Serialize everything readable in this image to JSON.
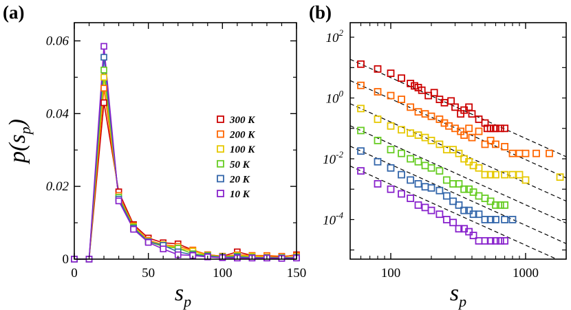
{
  "figure": {
    "panel_a_label": "(a)",
    "panel_b_label": "(b)"
  },
  "chart_data": [
    {
      "type": "line",
      "panel": "(a)",
      "xlabel_main": "s",
      "xlabel_sub": "p",
      "ylabel": "p(s",
      "ylabel_sub": "p",
      "ylabel_close": ")",
      "xlim": [
        0,
        150
      ],
      "ylim": [
        0,
        0.065
      ],
      "x_ticks": [
        0,
        50,
        100,
        150
      ],
      "x_tick_labels": [
        "0",
        "50",
        "100",
        "150"
      ],
      "y_ticks": [
        0,
        0.02,
        0.04,
        0.06
      ],
      "y_tick_labels": [
        "0",
        "0.02",
        "0.04",
        "0.06"
      ],
      "legend_position": "right",
      "x": [
        0,
        10,
        20,
        30,
        40,
        50,
        60,
        70,
        80,
        90,
        100,
        110,
        120,
        130,
        140,
        150
      ],
      "series": [
        {
          "name": "300 K",
          "color": "#cc0000",
          "values": [
            0,
            0,
            0.043,
            0.0185,
            0.0095,
            0.0058,
            0.0045,
            0.0042,
            0.0025,
            0.0012,
            0.0008,
            0.002,
            0.001,
            0.0008,
            0.0006,
            0.0012
          ]
        },
        {
          "name": "200 K",
          "color": "#ff6600",
          "values": [
            0,
            0,
            0.047,
            0.0175,
            0.0092,
            0.0052,
            0.004,
            0.0035,
            0.0025,
            0.0012,
            0.0008,
            0.0012,
            0.001,
            0.001,
            0.0008,
            0.001
          ]
        },
        {
          "name": "100 K",
          "color": "#e6c800",
          "values": [
            0,
            0,
            0.05,
            0.017,
            0.009,
            0.005,
            0.004,
            0.003,
            0.0022,
            0.001,
            0.0007,
            0.001,
            0.0008,
            0.0006,
            0.0004,
            0.0006
          ]
        },
        {
          "name": "50 K",
          "color": "#66cc22",
          "values": [
            0,
            0,
            0.052,
            0.017,
            0.0088,
            0.0048,
            0.0035,
            0.003,
            0.0015,
            0.001,
            0.0006,
            0.0008,
            0.0005,
            0.0004,
            0.0004,
            0.0005
          ]
        },
        {
          "name": "20 K",
          "color": "#3366aa",
          "values": [
            0,
            0,
            0.0555,
            0.0165,
            0.0085,
            0.0048,
            0.0038,
            0.002,
            0.0012,
            0.0008,
            0.0005,
            0.0006,
            0.0004,
            0.0004,
            0.0003,
            0.0004
          ]
        },
        {
          "name": "10 K",
          "color": "#8822cc",
          "values": [
            0,
            0,
            0.0585,
            0.016,
            0.0082,
            0.0046,
            0.0028,
            0.0012,
            0.001,
            0.0006,
            0.0004,
            0.0003,
            0.0003,
            0.0003,
            0.0002,
            0.0003
          ]
        }
      ]
    },
    {
      "type": "scatter",
      "panel": "(b)",
      "x_scale": "log",
      "y_scale": "log",
      "xlabel_main": "s",
      "xlabel_sub": "p",
      "xlim": [
        50,
        2000
      ],
      "ylim": [
        5e-06,
        300
      ],
      "x_ticks": [
        100,
        1000
      ],
      "x_tick_labels": [
        "100",
        "1000"
      ],
      "y_ticks": [
        0.0001,
        0.01,
        1,
        100
      ],
      "y_tick_labels": [
        {
          "base": "10",
          "exp": "-4"
        },
        {
          "base": "10",
          "exp": "-2"
        },
        {
          "base": "10",
          "exp": "0"
        },
        {
          "base": "10",
          "exp": "2"
        }
      ],
      "power_law_fits_dashed": true,
      "series": [
        {
          "name": "300 K",
          "color": "#cc0000",
          "fit_at_60": 13,
          "x": [
            60,
            80,
            100,
            120,
            140,
            150,
            160,
            170,
            190,
            210,
            230,
            250,
            280,
            300,
            330,
            350,
            380,
            400,
            450,
            500,
            520,
            550,
            580,
            600,
            650,
            700
          ],
          "y": [
            13,
            9,
            6.5,
            4.5,
            3,
            2.5,
            2.2,
            1.8,
            1.2,
            1.5,
            0.9,
            0.7,
            0.8,
            0.5,
            0.3,
            0.4,
            0.5,
            0.3,
            0.2,
            0.15,
            0.1,
            0.1,
            0.1,
            0.1,
            0.1,
            0.1
          ]
        },
        {
          "name": "200 K",
          "color": "#ff6600",
          "fit_at_60": 2.6,
          "x": [
            60,
            80,
            100,
            120,
            140,
            160,
            180,
            200,
            230,
            250,
            270,
            300,
            330,
            350,
            380,
            400,
            450,
            500,
            550,
            600,
            700,
            800,
            900,
            1000,
            1200,
            1500
          ],
          "y": [
            2.6,
            1.6,
            1.2,
            0.9,
            0.5,
            0.35,
            0.3,
            0.25,
            0.2,
            0.15,
            0.12,
            0.1,
            0.08,
            0.06,
            0.1,
            0.05,
            0.08,
            0.03,
            0.04,
            0.03,
            0.025,
            0.015,
            0.015,
            0.015,
            0.015,
            0.015
          ]
        },
        {
          "name": "100 K",
          "color": "#e6c800",
          "fit_at_60": 0.45,
          "x": [
            60,
            80,
            100,
            120,
            140,
            160,
            180,
            200,
            230,
            260,
            290,
            320,
            350,
            380,
            410,
            450,
            500,
            550,
            600,
            700,
            800,
            900,
            1000,
            1800
          ],
          "y": [
            0.45,
            0.2,
            0.12,
            0.09,
            0.07,
            0.06,
            0.05,
            0.04,
            0.03,
            0.02,
            0.02,
            0.015,
            0.01,
            0.008,
            0.006,
            0.005,
            0.003,
            0.003,
            0.003,
            0.003,
            0.003,
            0.003,
            0.002,
            0.0025
          ]
        },
        {
          "name": "50 K",
          "color": "#66cc22",
          "fit_at_60": 0.085,
          "x": [
            60,
            80,
            100,
            120,
            140,
            160,
            180,
            200,
            230,
            260,
            290,
            320,
            350,
            380,
            410,
            450,
            500,
            550,
            600,
            650,
            700
          ],
          "y": [
            0.085,
            0.04,
            0.02,
            0.015,
            0.01,
            0.008,
            0.006,
            0.005,
            0.004,
            0.002,
            0.0015,
            0.0015,
            0.001,
            0.001,
            0.0008,
            0.0006,
            0.0005,
            0.0004,
            0.0003,
            0.0003,
            0.0003
          ]
        },
        {
          "name": "20 K",
          "color": "#3366aa",
          "fit_at_60": 0.018,
          "x": [
            60,
            80,
            100,
            120,
            140,
            160,
            180,
            200,
            230,
            260,
            290,
            320,
            350,
            380,
            410,
            450,
            500,
            550,
            600,
            700,
            800
          ],
          "y": [
            0.018,
            0.008,
            0.005,
            0.003,
            0.002,
            0.0015,
            0.0012,
            0.0011,
            0.0009,
            0.0006,
            0.0004,
            0.0003,
            0.0002,
            0.0002,
            0.00015,
            0.00015,
            0.0001,
            0.0001,
            0.0001,
            0.0001,
            0.0001
          ]
        },
        {
          "name": "10 K",
          "color": "#8822cc",
          "fit_at_60": 0.004,
          "x": [
            60,
            80,
            100,
            120,
            140,
            160,
            180,
            200,
            230,
            260,
            290,
            320,
            350,
            380,
            410,
            450,
            500,
            550,
            600,
            650,
            700
          ],
          "y": [
            0.004,
            0.0015,
            0.001,
            0.0007,
            0.0005,
            0.0003,
            0.00025,
            0.0002,
            0.00015,
            0.0001,
            8e-05,
            5e-05,
            5e-05,
            4e-05,
            3e-05,
            2e-05,
            2e-05,
            2e-05,
            2e-05,
            2e-05,
            2e-05
          ]
        }
      ]
    }
  ]
}
